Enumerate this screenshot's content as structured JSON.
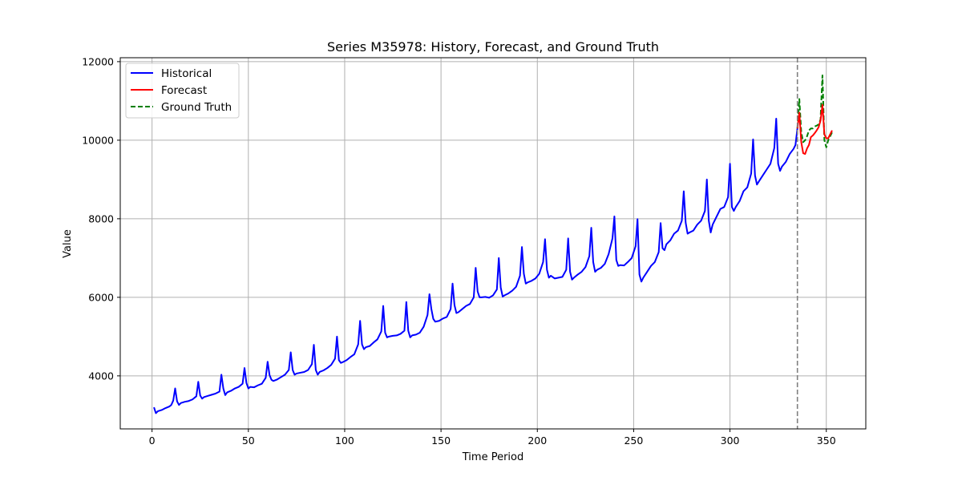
{
  "chart_data": {
    "type": "line",
    "title": "Series M35978: History, Forecast, and Ground Truth",
    "xlabel": "Time Period",
    "ylabel": "Value",
    "xlim": [
      -16.5,
      370.5
    ],
    "ylim": [
      2650,
      12100
    ],
    "xticks": [
      0,
      50,
      100,
      150,
      200,
      250,
      300,
      350
    ],
    "yticks": [
      4000,
      6000,
      8000,
      10000,
      12000
    ],
    "grid": true,
    "legend_position": "top-left",
    "forecast_start": 335,
    "colors": {
      "historical": "#0000ff",
      "forecast": "#ff0000",
      "ground_truth": "#008000",
      "divider": "#808080",
      "grid": "#b0b0b0"
    },
    "series": [
      {
        "name": "Historical",
        "style": "solid",
        "points": [
          [
            1,
            3200
          ],
          [
            2,
            3050
          ],
          [
            3,
            3100
          ],
          [
            5,
            3130
          ],
          [
            7,
            3180
          ],
          [
            9,
            3220
          ],
          [
            10,
            3260
          ],
          [
            11,
            3370
          ],
          [
            12,
            3680
          ],
          [
            13,
            3350
          ],
          [
            14,
            3260
          ],
          [
            15,
            3310
          ],
          [
            17,
            3340
          ],
          [
            19,
            3360
          ],
          [
            21,
            3400
          ],
          [
            23,
            3480
          ],
          [
            24,
            3850
          ],
          [
            25,
            3500
          ],
          [
            26,
            3420
          ],
          [
            27,
            3460
          ],
          [
            29,
            3490
          ],
          [
            31,
            3520
          ],
          [
            33,
            3550
          ],
          [
            35,
            3600
          ],
          [
            36,
            4030
          ],
          [
            37,
            3680
          ],
          [
            38,
            3510
          ],
          [
            39,
            3580
          ],
          [
            41,
            3620
          ],
          [
            43,
            3680
          ],
          [
            45,
            3720
          ],
          [
            47,
            3800
          ],
          [
            48,
            4200
          ],
          [
            49,
            3820
          ],
          [
            50,
            3680
          ],
          [
            51,
            3720
          ],
          [
            53,
            3710
          ],
          [
            55,
            3760
          ],
          [
            57,
            3800
          ],
          [
            59,
            3950
          ],
          [
            60,
            4360
          ],
          [
            61,
            4020
          ],
          [
            62,
            3900
          ],
          [
            63,
            3870
          ],
          [
            65,
            3910
          ],
          [
            67,
            3970
          ],
          [
            69,
            4030
          ],
          [
            71,
            4150
          ],
          [
            72,
            4600
          ],
          [
            73,
            4150
          ],
          [
            74,
            4030
          ],
          [
            75,
            4060
          ],
          [
            77,
            4080
          ],
          [
            79,
            4100
          ],
          [
            81,
            4150
          ],
          [
            83,
            4300
          ],
          [
            84,
            4790
          ],
          [
            85,
            4150
          ],
          [
            86,
            4030
          ],
          [
            87,
            4100
          ],
          [
            89,
            4140
          ],
          [
            91,
            4200
          ],
          [
            93,
            4280
          ],
          [
            95,
            4440
          ],
          [
            96,
            5000
          ],
          [
            97,
            4400
          ],
          [
            98,
            4330
          ],
          [
            99,
            4350
          ],
          [
            101,
            4400
          ],
          [
            103,
            4480
          ],
          [
            105,
            4550
          ],
          [
            107,
            4800
          ],
          [
            108,
            5400
          ],
          [
            109,
            4800
          ],
          [
            110,
            4680
          ],
          [
            111,
            4730
          ],
          [
            113,
            4760
          ],
          [
            115,
            4850
          ],
          [
            117,
            4930
          ],
          [
            119,
            5130
          ],
          [
            120,
            5780
          ],
          [
            121,
            5100
          ],
          [
            122,
            4980
          ],
          [
            123,
            5000
          ],
          [
            125,
            5020
          ],
          [
            127,
            5030
          ],
          [
            129,
            5070
          ],
          [
            131,
            5150
          ],
          [
            132,
            5880
          ],
          [
            133,
            5150
          ],
          [
            134,
            4980
          ],
          [
            135,
            5030
          ],
          [
            137,
            5050
          ],
          [
            139,
            5100
          ],
          [
            141,
            5250
          ],
          [
            143,
            5550
          ],
          [
            144,
            6080
          ],
          [
            145,
            5700
          ],
          [
            146,
            5450
          ],
          [
            147,
            5380
          ],
          [
            149,
            5400
          ],
          [
            151,
            5460
          ],
          [
            153,
            5500
          ],
          [
            155,
            5700
          ],
          [
            156,
            6350
          ],
          [
            157,
            5800
          ],
          [
            158,
            5600
          ],
          [
            159,
            5620
          ],
          [
            161,
            5700
          ],
          [
            163,
            5780
          ],
          [
            165,
            5830
          ],
          [
            167,
            6000
          ],
          [
            168,
            6750
          ],
          [
            169,
            6150
          ],
          [
            170,
            6000
          ],
          [
            171,
            6000
          ],
          [
            173,
            6010
          ],
          [
            175,
            5990
          ],
          [
            177,
            6050
          ],
          [
            179,
            6200
          ],
          [
            180,
            7000
          ],
          [
            181,
            6250
          ],
          [
            182,
            6020
          ],
          [
            183,
            6050
          ],
          [
            185,
            6100
          ],
          [
            187,
            6170
          ],
          [
            189,
            6270
          ],
          [
            191,
            6550
          ],
          [
            192,
            7280
          ],
          [
            193,
            6600
          ],
          [
            194,
            6350
          ],
          [
            195,
            6380
          ],
          [
            197,
            6420
          ],
          [
            199,
            6480
          ],
          [
            201,
            6600
          ],
          [
            203,
            6900
          ],
          [
            204,
            7480
          ],
          [
            205,
            6700
          ],
          [
            206,
            6500
          ],
          [
            207,
            6550
          ],
          [
            209,
            6480
          ],
          [
            211,
            6500
          ],
          [
            213,
            6520
          ],
          [
            215,
            6700
          ],
          [
            216,
            7500
          ],
          [
            217,
            6650
          ],
          [
            218,
            6450
          ],
          [
            219,
            6500
          ],
          [
            221,
            6580
          ],
          [
            223,
            6650
          ],
          [
            225,
            6770
          ],
          [
            227,
            7050
          ],
          [
            228,
            7770
          ],
          [
            229,
            6900
          ],
          [
            230,
            6650
          ],
          [
            231,
            6700
          ],
          [
            233,
            6750
          ],
          [
            235,
            6850
          ],
          [
            237,
            7100
          ],
          [
            239,
            7500
          ],
          [
            240,
            8060
          ],
          [
            241,
            6950
          ],
          [
            242,
            6800
          ],
          [
            243,
            6820
          ],
          [
            245,
            6810
          ],
          [
            247,
            6900
          ],
          [
            249,
            7000
          ],
          [
            251,
            7300
          ],
          [
            252,
            7990
          ],
          [
            253,
            6580
          ],
          [
            254,
            6400
          ],
          [
            255,
            6500
          ],
          [
            257,
            6650
          ],
          [
            259,
            6800
          ],
          [
            261,
            6900
          ],
          [
            263,
            7150
          ],
          [
            264,
            7890
          ],
          [
            265,
            7250
          ],
          [
            266,
            7200
          ],
          [
            267,
            7350
          ],
          [
            269,
            7450
          ],
          [
            271,
            7620
          ],
          [
            273,
            7700
          ],
          [
            275,
            7950
          ],
          [
            276,
            8700
          ],
          [
            277,
            7900
          ],
          [
            278,
            7620
          ],
          [
            279,
            7650
          ],
          [
            281,
            7700
          ],
          [
            283,
            7850
          ],
          [
            285,
            7950
          ],
          [
            287,
            8200
          ],
          [
            288,
            9000
          ],
          [
            289,
            7950
          ],
          [
            290,
            7650
          ],
          [
            291,
            7850
          ],
          [
            293,
            8050
          ],
          [
            295,
            8250
          ],
          [
            297,
            8300
          ],
          [
            299,
            8550
          ],
          [
            300,
            9400
          ],
          [
            301,
            8300
          ],
          [
            302,
            8200
          ],
          [
            303,
            8300
          ],
          [
            305,
            8450
          ],
          [
            307,
            8700
          ],
          [
            309,
            8800
          ],
          [
            311,
            9150
          ],
          [
            312,
            10020
          ],
          [
            313,
            9100
          ],
          [
            314,
            8870
          ],
          [
            315,
            8950
          ],
          [
            317,
            9100
          ],
          [
            319,
            9250
          ],
          [
            321,
            9400
          ],
          [
            323,
            9800
          ],
          [
            324,
            10550
          ],
          [
            325,
            9400
          ],
          [
            326,
            9220
          ],
          [
            327,
            9330
          ],
          [
            329,
            9450
          ],
          [
            331,
            9650
          ],
          [
            333,
            9780
          ],
          [
            334,
            9880
          ],
          [
            335,
            10300
          ]
        ]
      },
      {
        "name": "Forecast",
        "style": "solid",
        "points": [
          [
            335,
            10300
          ],
          [
            336,
            10700
          ],
          [
            337,
            9950
          ],
          [
            338,
            9670
          ],
          [
            339,
            9650
          ],
          [
            340,
            9790
          ],
          [
            341,
            9880
          ],
          [
            342,
            10080
          ],
          [
            343,
            10120
          ],
          [
            344,
            10180
          ],
          [
            345,
            10250
          ],
          [
            346,
            10330
          ],
          [
            347,
            10500
          ],
          [
            348,
            10900
          ],
          [
            349,
            10150
          ],
          [
            350,
            10050
          ],
          [
            351,
            10050
          ],
          [
            352,
            10150
          ],
          [
            353,
            10250
          ]
        ]
      },
      {
        "name": "Ground Truth",
        "style": "dashed",
        "points": [
          [
            335,
            10300
          ],
          [
            336,
            11050
          ],
          [
            337,
            10200
          ],
          [
            338,
            9950
          ],
          [
            339,
            10000
          ],
          [
            340,
            10100
          ],
          [
            341,
            10250
          ],
          [
            342,
            10300
          ],
          [
            343,
            10300
          ],
          [
            344,
            10350
          ],
          [
            345,
            10370
          ],
          [
            346,
            10400
          ],
          [
            347,
            10530
          ],
          [
            348,
            11650
          ],
          [
            349,
            10000
          ],
          [
            350,
            9820
          ],
          [
            351,
            10000
          ],
          [
            352,
            10100
          ],
          [
            353,
            10200
          ]
        ]
      }
    ]
  }
}
